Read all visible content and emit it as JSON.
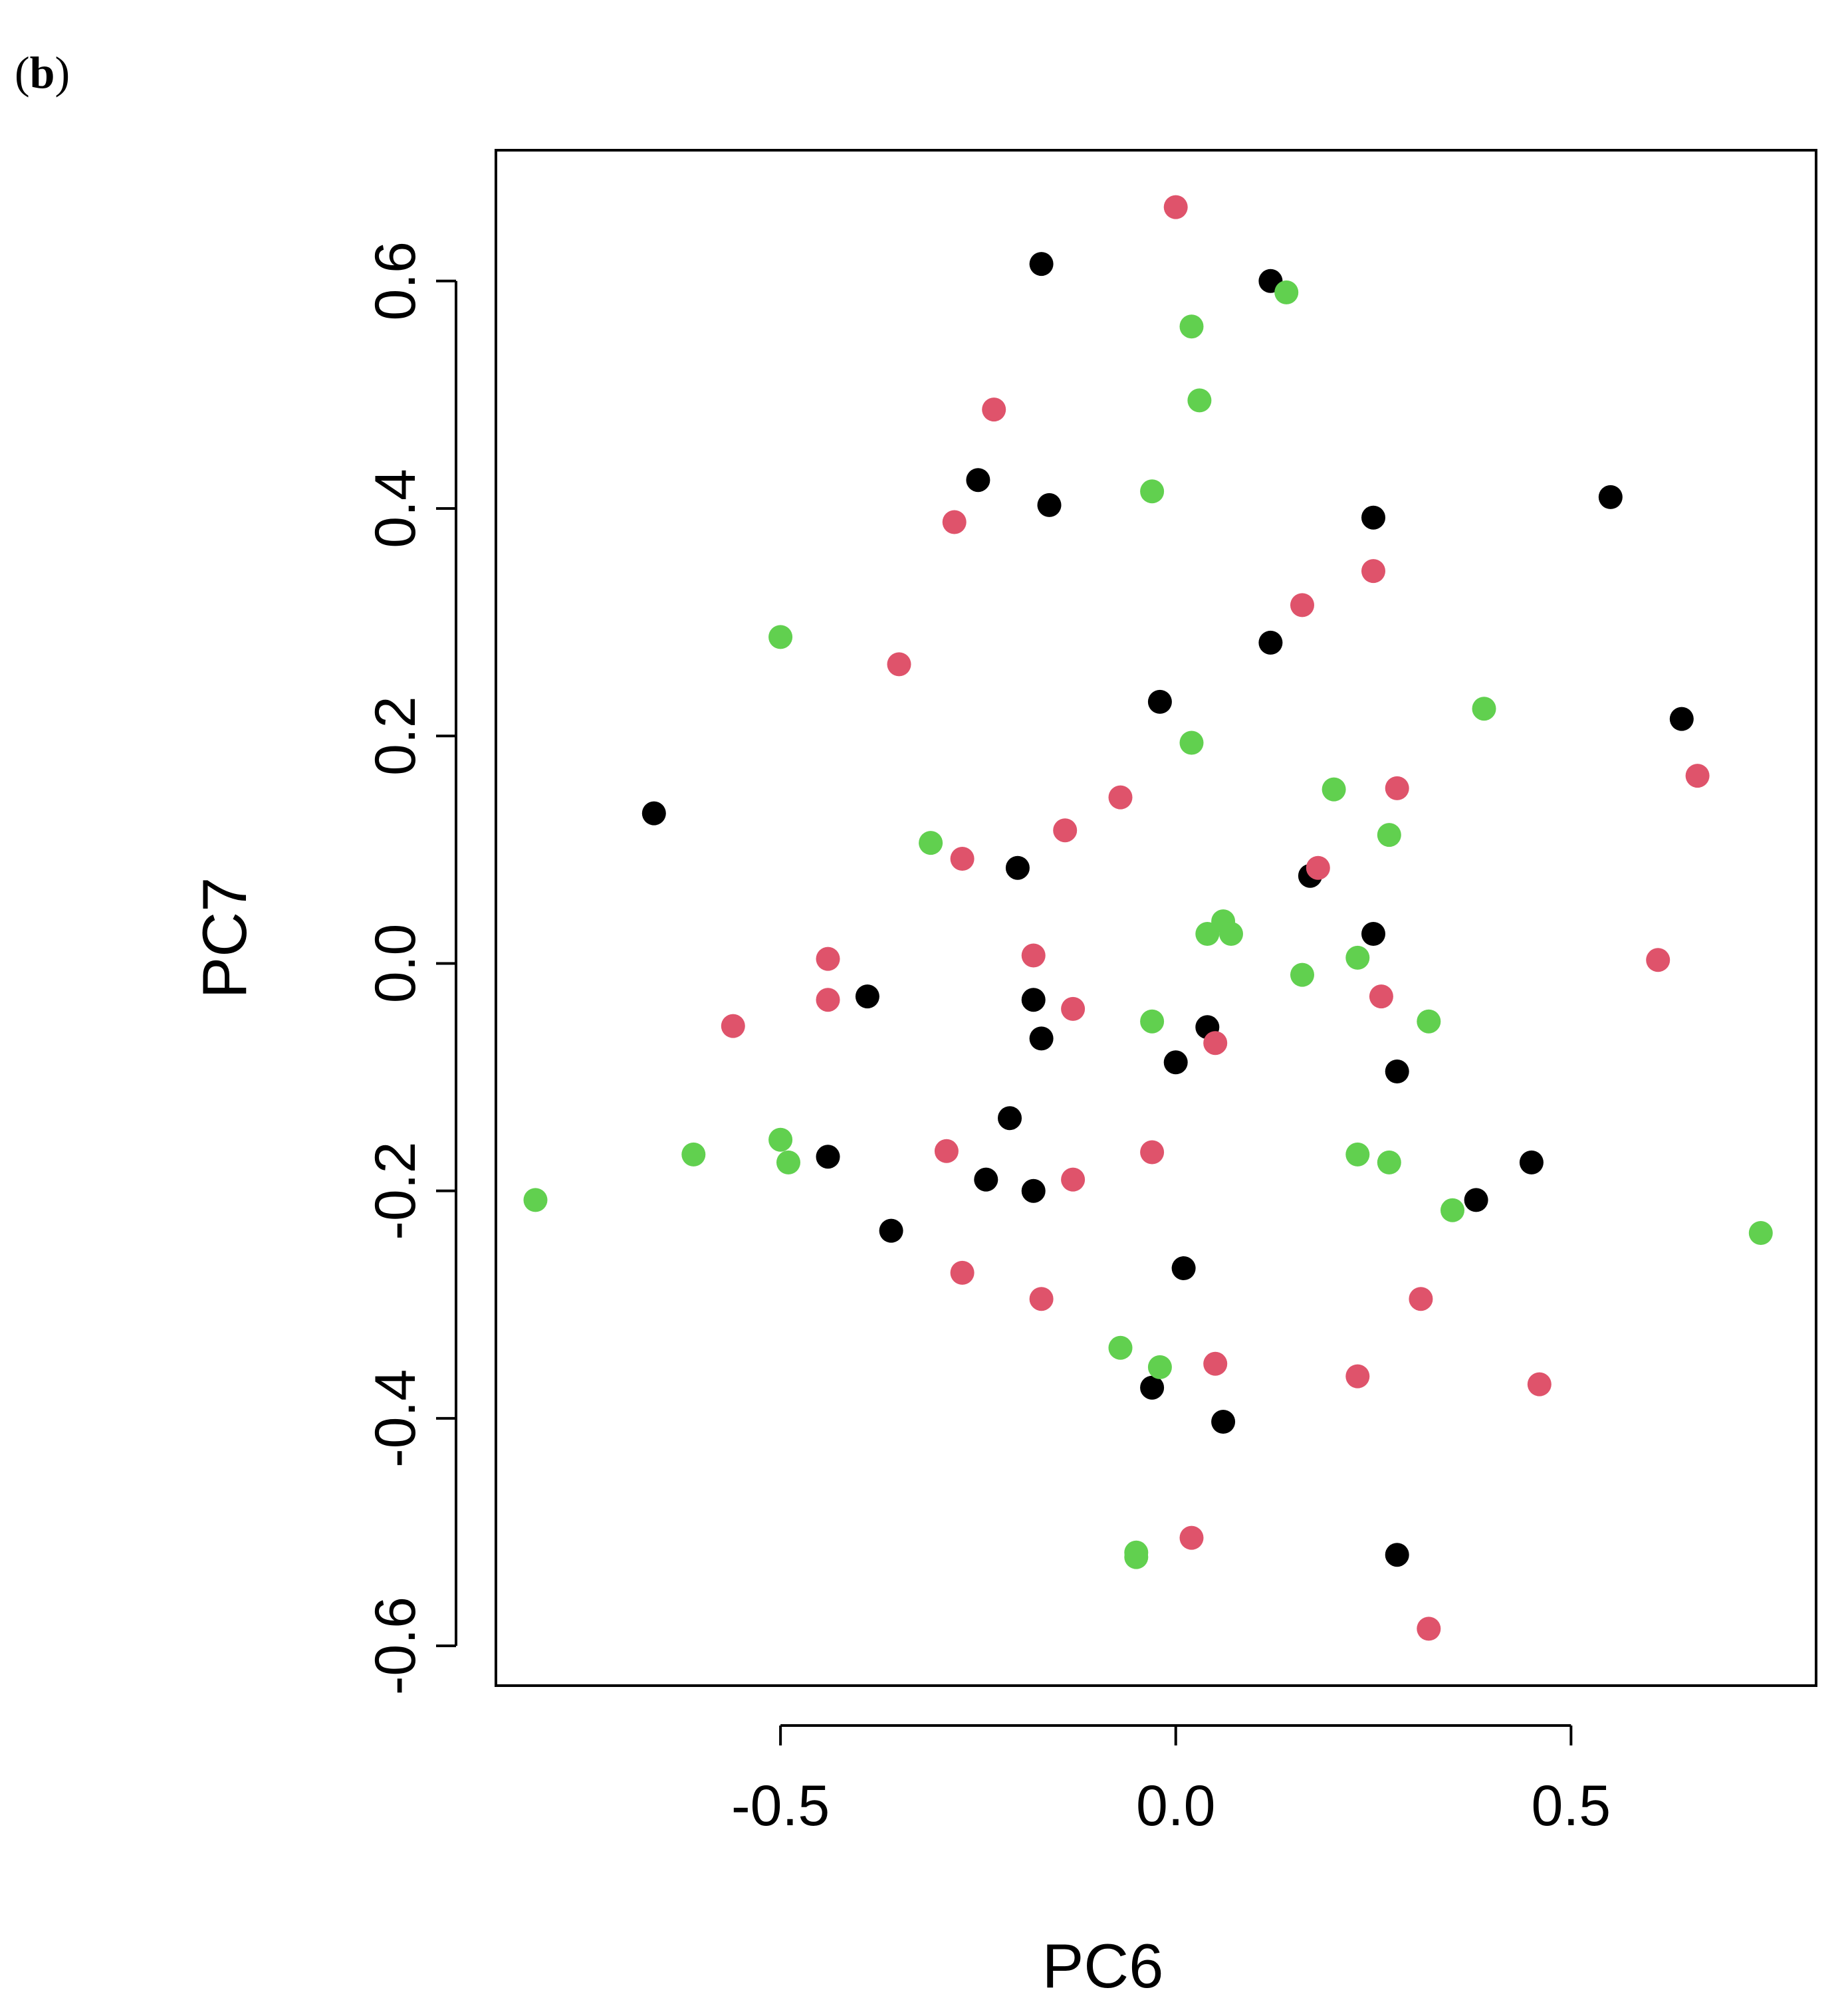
{
  "panel": {
    "open": "(",
    "letter": "b",
    "close": ")"
  },
  "chart_data": {
    "type": "scatter",
    "title": "",
    "xlabel": "PC6",
    "ylabel": "PC7",
    "xlim": [
      -0.86,
      0.81
    ],
    "ylim": [
      -0.635,
      0.715
    ],
    "xticks": [
      -0.5,
      0.0,
      0.5
    ],
    "xtick_labels": [
      "-0.5",
      "0.0",
      "0.5"
    ],
    "yticks": [
      -0.6,
      -0.4,
      -0.2,
      0.0,
      0.2,
      0.4,
      0.6
    ],
    "ytick_labels": [
      "-0.6",
      "-0.4",
      "-0.2",
      "0.0",
      "0.2",
      "0.4",
      "0.6"
    ],
    "grid": false,
    "legend": "none",
    "series": [
      {
        "color": "#000000",
        "points": [
          [
            -0.17,
            0.615
          ],
          [
            0.12,
            0.6
          ],
          [
            -0.25,
            0.425
          ],
          [
            -0.16,
            0.403
          ],
          [
            0.25,
            0.392
          ],
          [
            0.55,
            0.41
          ],
          [
            0.12,
            0.282
          ],
          [
            -0.02,
            0.23
          ],
          [
            0.64,
            0.215
          ],
          [
            -0.66,
            0.132
          ],
          [
            -0.2,
            0.084
          ],
          [
            0.17,
            0.077
          ],
          [
            0.25,
            0.026
          ],
          [
            -0.39,
            -0.029
          ],
          [
            -0.18,
            -0.032
          ],
          [
            -0.17,
            -0.066
          ],
          [
            0.04,
            -0.056
          ],
          [
            0.0,
            -0.087
          ],
          [
            0.28,
            -0.095
          ],
          [
            -0.21,
            -0.136
          ],
          [
            -0.44,
            -0.17
          ],
          [
            -0.24,
            -0.19
          ],
          [
            -0.18,
            -0.2
          ],
          [
            0.45,
            -0.175
          ],
          [
            0.38,
            -0.208
          ],
          [
            -0.36,
            -0.235
          ],
          [
            0.01,
            -0.268
          ],
          [
            -0.03,
            -0.373
          ],
          [
            0.06,
            -0.403
          ],
          [
            0.28,
            -0.52
          ]
        ]
      },
      {
        "color": "#df536b",
        "points": [
          [
            0.0,
            0.665
          ],
          [
            -0.23,
            0.487
          ],
          [
            -0.28,
            0.388
          ],
          [
            0.25,
            0.345
          ],
          [
            0.16,
            0.315
          ],
          [
            -0.35,
            0.263
          ],
          [
            0.28,
            0.154
          ],
          [
            0.66,
            0.165
          ],
          [
            -0.07,
            0.146
          ],
          [
            -0.14,
            0.117
          ],
          [
            -0.27,
            0.092
          ],
          [
            0.18,
            0.084
          ],
          [
            -0.44,
            0.004
          ],
          [
            -0.18,
            0.007
          ],
          [
            0.61,
            0.003
          ],
          [
            -0.44,
            -0.032
          ],
          [
            -0.56,
            -0.055
          ],
          [
            0.26,
            -0.029
          ],
          [
            -0.13,
            -0.04
          ],
          [
            0.05,
            -0.07
          ],
          [
            -0.29,
            -0.165
          ],
          [
            -0.03,
            -0.166
          ],
          [
            -0.13,
            -0.19
          ],
          [
            -0.27,
            -0.272
          ],
          [
            -0.17,
            -0.295
          ],
          [
            0.31,
            -0.295
          ],
          [
            0.05,
            -0.352
          ],
          [
            0.23,
            -0.363
          ],
          [
            0.46,
            -0.37
          ],
          [
            0.02,
            -0.505
          ],
          [
            0.32,
            -0.585
          ]
        ]
      },
      {
        "color": "#61d04f",
        "points": [
          [
            0.14,
            0.59
          ],
          [
            0.02,
            0.56
          ],
          [
            0.03,
            0.495
          ],
          [
            -0.03,
            0.415
          ],
          [
            -0.5,
            0.287
          ],
          [
            0.39,
            0.224
          ],
          [
            0.02,
            0.194
          ],
          [
            0.2,
            0.153
          ],
          [
            0.27,
            0.113
          ],
          [
            -0.31,
            0.106
          ],
          [
            0.04,
            0.026
          ],
          [
            0.06,
            0.037
          ],
          [
            0.07,
            0.026
          ],
          [
            0.23,
            0.005
          ],
          [
            0.16,
            -0.01
          ],
          [
            -0.03,
            -0.051
          ],
          [
            0.32,
            -0.051
          ],
          [
            -0.61,
            -0.168
          ],
          [
            -0.5,
            -0.155
          ],
          [
            -0.49,
            -0.175
          ],
          [
            0.23,
            -0.168
          ],
          [
            0.27,
            -0.175
          ],
          [
            0.35,
            -0.217
          ],
          [
            -0.81,
            -0.208
          ],
          [
            0.74,
            -0.237
          ],
          [
            -0.07,
            -0.338
          ],
          [
            -0.02,
            -0.355
          ],
          [
            -0.05,
            -0.518
          ],
          [
            -0.05,
            -0.522
          ]
        ]
      }
    ]
  }
}
